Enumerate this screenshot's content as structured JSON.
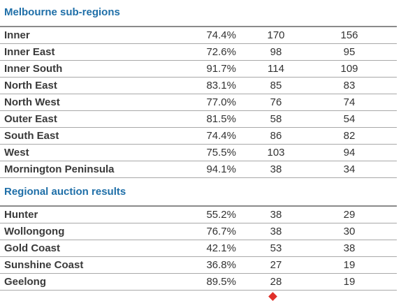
{
  "sections": [
    {
      "title": "Melbourne sub-regions",
      "rows": [
        {
          "name": "Inner",
          "pct": "74.4%",
          "a": "170",
          "b": "156"
        },
        {
          "name": "Inner East",
          "pct": "72.6%",
          "a": "98",
          "b": "95"
        },
        {
          "name": "Inner South",
          "pct": "91.7%",
          "a": "114",
          "b": "109"
        },
        {
          "name": "North East",
          "pct": "83.1%",
          "a": "85",
          "b": "83"
        },
        {
          "name": "North West",
          "pct": "77.0%",
          "a": "76",
          "b": "74"
        },
        {
          "name": "Outer East",
          "pct": "81.5%",
          "a": "58",
          "b": "54"
        },
        {
          "name": "South East",
          "pct": "74.4%",
          "a": "86",
          "b": "82"
        },
        {
          "name": "West",
          "pct": "75.5%",
          "a": "103",
          "b": "94"
        },
        {
          "name": "Mornington Peninsula",
          "pct": "94.1%",
          "a": "38",
          "b": "34"
        }
      ]
    },
    {
      "title": "Regional auction results",
      "rows": [
        {
          "name": "Hunter",
          "pct": "55.2%",
          "a": "38",
          "b": "29"
        },
        {
          "name": "Wollongong",
          "pct": "76.7%",
          "a": "38",
          "b": "30"
        },
        {
          "name": "Gold Coast",
          "pct": "42.1%",
          "a": "53",
          "b": "38"
        },
        {
          "name": "Sunshine Coast",
          "pct": "36.8%",
          "a": "27",
          "b": "19"
        },
        {
          "name": "Geelong",
          "pct": "89.5%",
          "a": "28",
          "b": "19"
        }
      ]
    }
  ],
  "colors": {
    "title": "#1f6fa8",
    "mark": "#e0302a"
  }
}
